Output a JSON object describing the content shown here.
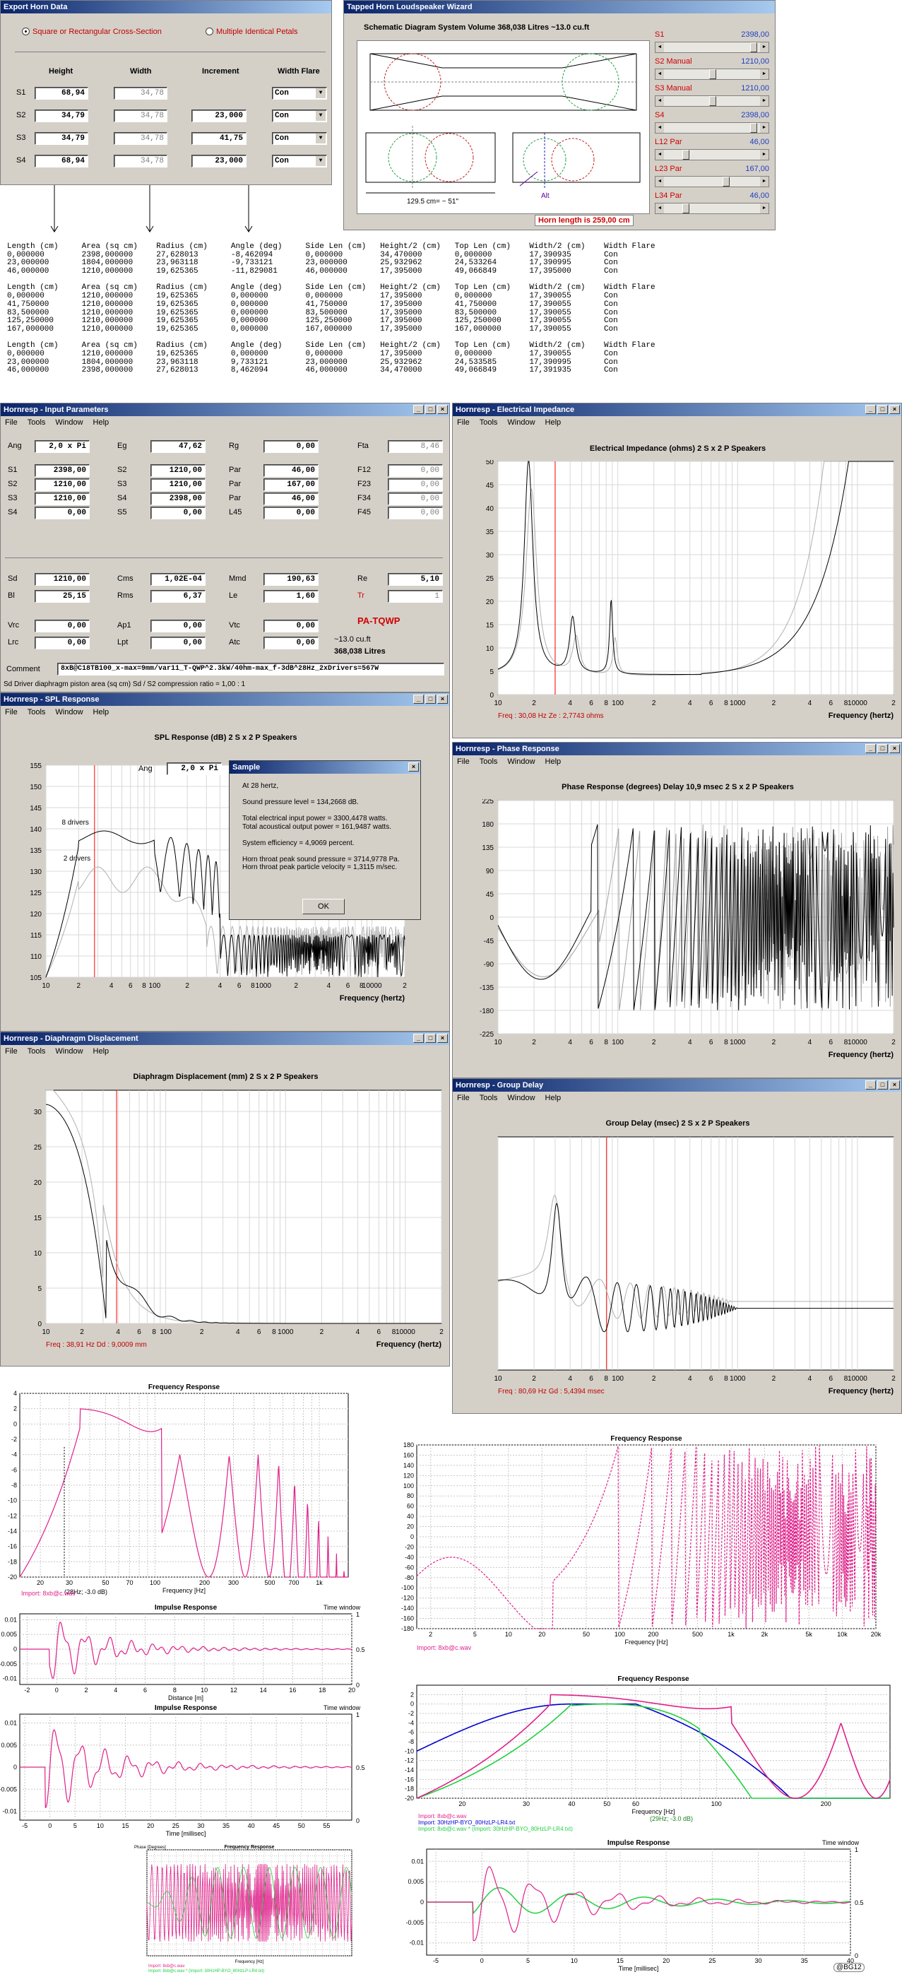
{
  "export_horn": {
    "title": "Export Horn Data",
    "radio_square": "Square or Rectangular Cross-Section",
    "radio_multiple": "Multiple Identical Petals",
    "col_height": "Height",
    "col_width": "Width",
    "col_increment": "Increment",
    "col_flare": "Width Flare",
    "rows": [
      {
        "label": "S1",
        "height": "68,94",
        "width": "34,78",
        "increment": "",
        "flare": "Con"
      },
      {
        "label": "S2",
        "height": "34,79",
        "width": "34,78",
        "increment": "23,000",
        "flare": "Con"
      },
      {
        "label": "S3",
        "height": "34,79",
        "width": "34,78",
        "increment": "41,75",
        "flare": "Con"
      },
      {
        "label": "S4",
        "height": "68,94",
        "width": "34,78",
        "increment": "23,000",
        "flare": "Con"
      }
    ]
  },
  "wizard": {
    "title": "Tapped Horn Loudspeaker Wizard",
    "heading": "Schematic Diagram   System Volume 368,038 Litres ~13.0 cu.ft",
    "dim_label": "129.5 cm= ~ 51\"",
    "alt_label": "Alt",
    "horn_length": "Horn length is 259,00 cm",
    "sliders": [
      {
        "label": "S1",
        "value": "2398,00",
        "pos": 0.95
      },
      {
        "label": "S2 Manual",
        "value": "1210,00",
        "pos": 0.5
      },
      {
        "label": "S3 Manual",
        "value": "1210,00",
        "pos": 0.5
      },
      {
        "label": "S4",
        "value": "2398,00",
        "pos": 0.95
      },
      {
        "label": "L12 Par",
        "value": "46,00",
        "pos": 0.2
      },
      {
        "label": "L23 Par",
        "value": "167,00",
        "pos": 0.65
      },
      {
        "label": "L34 Par",
        "value": "46,00",
        "pos": 0.2
      }
    ]
  },
  "export_table": [
    "Length (cm)     Area (sq cm)    Radius (cm)     Angle (deg)     Side Len (cm)   Height/2 (cm)   Top Len (cm)    Width/2 (cm)    Width Flare",
    "0,000000        2398,000000     27,628013       -8,462094       0,000000        34,470000       0,000000        17,390935       Con",
    "23,000000       1804,000000     23,963118       -9,733121       23,000000       25,932962       24,533264       17,390995       Con",
    "46,000000       1210,000000     19,625365       -11,829081      46,000000       17,395000       49,066849       17,395000       Con",
    "",
    "Length (cm)     Area (sq cm)    Radius (cm)     Angle (deg)     Side Len (cm)   Height/2 (cm)   Top Len (cm)    Width/2 (cm)    Width Flare",
    "0,000000        1210,000000     19,625365       0,000000        0,000000        17,395000       0,000000        17,390055       Con",
    "41,750000       1210,000000     19,625365       0,000000        41,750000       17,395000       41,750000       17,390055       Con",
    "83,500000       1210,000000     19,625365       0,000000        83,500000       17,395000       83,500000       17,390055       Con",
    "125,250000      1210,000000     19,625365       0,000000        125,250000      17,395000       125,250000      17,390055       Con",
    "167,000000      1210,000000     19,625365       0,000000        167,000000      17,395000       167,000000      17,390055       Con",
    "",
    "Length (cm)     Area (sq cm)    Radius (cm)     Angle (deg)     Side Len (cm)   Height/2 (cm)   Top Len (cm)    Width/2 (cm)    Width Flare",
    "0,000000        1210,000000     19,625365       0,000000        0,000000        17,395000       0,000000        17,390055       Con",
    "23,000000       1804,000000     23,963118       9,733121        23,000000       25,932962       24,533585       17,390995       Con",
    "46,000000       2398,000000     27,628013       8,462094        46,000000       34,470000       49,066849       17,391935       Con"
  ],
  "input": {
    "title": "Hornresp - Input Parameters",
    "menu": [
      "File",
      "Tools",
      "Window",
      "Help"
    ],
    "rows": [
      [
        [
          "Ang",
          "2,0 x Pi"
        ],
        [
          "Eg",
          "47,62"
        ],
        [
          "Rg",
          "0,00"
        ],
        [
          "Fta",
          "8,46"
        ]
      ],
      [
        [
          "S1",
          "2398,00"
        ],
        [
          "S2",
          "1210,00"
        ],
        [
          "Par",
          "46,00"
        ],
        [
          "F12",
          "0,00"
        ]
      ],
      [
        [
          "S2",
          "1210,00"
        ],
        [
          "S3",
          "1210,00"
        ],
        [
          "Par",
          "167,00"
        ],
        [
          "F23",
          "0,00"
        ]
      ],
      [
        [
          "S3",
          "1210,00"
        ],
        [
          "S4",
          "2398,00"
        ],
        [
          "Par",
          "46,00"
        ],
        [
          "F34",
          "0,00"
        ]
      ],
      [
        [
          "S4",
          "0,00"
        ],
        [
          "S5",
          "0,00"
        ],
        [
          "L45",
          "0,00"
        ],
        [
          "F45",
          "0,00"
        ]
      ]
    ],
    "rows2": [
      [
        [
          "Sd",
          "1210,00"
        ],
        [
          "Cms",
          "1,02E-04"
        ],
        [
          "Mmd",
          "190,63"
        ],
        [
          "Re",
          "5,10"
        ]
      ],
      [
        [
          "Bl",
          "25,15"
        ],
        [
          "Rms",
          "6,37"
        ],
        [
          "Le",
          "1,60"
        ],
        [
          "Tr",
          "1"
        ]
      ]
    ],
    "rows3": [
      [
        [
          "Vrc",
          "0,00"
        ],
        [
          "Ap1",
          "0,00"
        ],
        [
          "Vtc",
          "0,00"
        ]
      ],
      [
        [
          "Lrc",
          "0,00"
        ],
        [
          "Lpt",
          "0,00"
        ],
        [
          "Atc",
          "0,00"
        ]
      ]
    ],
    "mode": "PA-TQWP",
    "volume1": "~13.0 cu.ft",
    "volume2": "368,038 Litres",
    "comment_label": "Comment",
    "comment": "8xB@C18TB100_x-max=9mm/var11_T-QWP^2.3kW/40hm-max_f-3dB^28Hz_2xDrivers=567W",
    "status": "Sd  Driver diaphragm piston area (sq cm)   Sd / S2 compression ratio = 1,00 : 1"
  },
  "impedance": {
    "title": "Hornresp - Electrical Impedance",
    "menu": [
      "File",
      "Tools",
      "Window",
      "Help"
    ],
    "heading": "Electrical Impedance (ohms)   2 S x 2 P Speakers",
    "yticks": [
      "50",
      "45",
      "40",
      "35",
      "30",
      "25",
      "20",
      "15",
      "10",
      "5",
      "0"
    ],
    "xticks": [
      "10",
      "2",
      "4",
      "6",
      "8",
      "100",
      "2",
      "4",
      "6",
      "8",
      "1000",
      "2",
      "4",
      "6",
      "8",
      "10000",
      "2"
    ],
    "xunit": "Frequency (hertz)",
    "status": "Freq : 30,08 Hz     Ze : 2,7743 ohms"
  },
  "spl": {
    "title": "Hornresp - SPL Response",
    "menu": [
      "File",
      "Tools",
      "Window",
      "Help"
    ],
    "heading": "SPL Response (dB)   2 S x 2 P Speakers",
    "yticks": [
      "155",
      "150",
      "145",
      "140",
      "135",
      "130",
      "125",
      "120",
      "115",
      "110",
      "105"
    ],
    "xticks": [
      "10",
      "2",
      "4",
      "6",
      "8",
      "100",
      "2",
      "4",
      "6",
      "8",
      "1000",
      "2",
      "4",
      "6",
      "8",
      "10000",
      "2"
    ],
    "xunit": "Frequency (hertz)",
    "label_8": "8 drivers",
    "label_2": "2 drivers",
    "ang_label": "Ang",
    "ang_value": "2,0 x Pi"
  },
  "sample": {
    "title": "Sample",
    "lines": [
      "At 28 hertz,",
      "",
      "Sound pressure level = 134,2668 dB.",
      "",
      "Total electrical input power = 3300,4478 watts.",
      "Total acoustical output power = 161,9487 watts.",
      "",
      "System efficiency = 4,9069 percent.",
      "",
      "Horn throat peak sound pressure = 3714,9778 Pa.",
      "Horn throat peak particle velocity = 1,3115 m/sec."
    ],
    "ok": "OK"
  },
  "phase": {
    "title": "Hornresp - Phase Response",
    "menu": [
      "File",
      "Tools",
      "Window",
      "Help"
    ],
    "heading": "Phase Response (degrees)   Delay 10,9 msec   2 S x 2 P Speakers",
    "yticks": [
      "225",
      "180",
      "135",
      "90",
      "45",
      "0",
      "-45",
      "-90",
      "-135",
      "-180",
      "-225"
    ],
    "xticks": [
      "10",
      "2",
      "4",
      "6",
      "8",
      "100",
      "2",
      "4",
      "6",
      "8",
      "1000",
      "2",
      "4",
      "6",
      "8",
      "10000",
      "2"
    ],
    "xunit": "Frequency (hertz)"
  },
  "displacement": {
    "title": "Hornresp - Diaphragm Displacement",
    "menu": [
      "File",
      "Tools",
      "Window",
      "Help"
    ],
    "heading": "Diaphragm Displacement (mm)   2 S x 2 P Speakers",
    "yticks": [
      "30",
      "25",
      "20",
      "15",
      "10",
      "5",
      "0"
    ],
    "xticks": [
      "10",
      "2",
      "4",
      "6",
      "8",
      "100",
      "2",
      "4",
      "6",
      "8",
      "1000",
      "2",
      "4",
      "6",
      "8",
      "10000",
      "2"
    ],
    "xunit": "Frequency (hertz)",
    "status": "Freq : 38,91 Hz     Dd : 9,0009 mm"
  },
  "group": {
    "title": "Hornresp - Group Delay",
    "menu": [
      "File",
      "Tools",
      "Window",
      "Help"
    ],
    "heading": "Group Delay (msec)   2 S x 2 P Speakers",
    "xticks": [
      "10",
      "2",
      "4",
      "6",
      "8",
      "100",
      "2",
      "4",
      "6",
      "8",
      "1000",
      "2",
      "4",
      "6",
      "8",
      "10000",
      "2"
    ],
    "xunit": "Frequency (hertz)",
    "status": "Freq : 80,69 Hz     Gd : 5,4394 msec"
  },
  "fr1": {
    "ylab": "Amplitude [dB]",
    "title": "Frequency Response",
    "yticks": [
      "4",
      "2",
      "0",
      "-2",
      "-4",
      "-6",
      "-8",
      "-10",
      "-12",
      "-14",
      "-16",
      "-18",
      "-20"
    ],
    "xticks": [
      "20",
      "30",
      "50",
      "70",
      "100",
      "200",
      "300",
      "500",
      "700",
      "1k"
    ],
    "xunit": "Frequency [Hz]",
    "marker": "(28Hz; -3.0 dB)",
    "legend": "Import: 8xb@c.wav"
  },
  "ph1": {
    "ylab": "Phase [Degrees]",
    "title": "Frequency Response",
    "yticks": [
      "180",
      "160",
      "140",
      "120",
      "100",
      "80",
      "60",
      "40",
      "20",
      "0",
      "-20",
      "-40",
      "-60",
      "-80",
      "-100",
      "-120",
      "-140",
      "-160",
      "-180"
    ],
    "xticks": [
      "2",
      "5",
      "10",
      "20",
      "50",
      "100",
      "200",
      "500",
      "1k",
      "2k",
      "5k",
      "10k",
      "20k"
    ],
    "xunit": "Frequency [Hz]",
    "legend": "Import: 8xb@c.wav"
  },
  "ir1": {
    "ylab": "Value",
    "title": "Impulse Response",
    "rlab": "Time window",
    "yticks": [
      "0.01",
      "0.005",
      "0",
      "-0.005",
      "-0.01"
    ],
    "rticks": [
      "1",
      "0.5",
      "0"
    ],
    "xticks": [
      "-2",
      "0",
      "2",
      "4",
      "6",
      "8",
      "10",
      "12",
      "14",
      "16",
      "18",
      "20"
    ],
    "xunit": "Distance [m]"
  },
  "ir2": {
    "ylab": "Value",
    "title": "Impulse Response",
    "rlab": "Time window",
    "yticks": [
      "0.01",
      "0.005",
      "0",
      "-0.005",
      "-0.01"
    ],
    "rticks": [
      "1",
      "0.5",
      "0"
    ],
    "xticks": [
      "-5",
      "0",
      "5",
      "10",
      "15",
      "20",
      "25",
      "30",
      "35",
      "40",
      "45",
      "50",
      "55"
    ],
    "xunit": "Time [millisec]"
  },
  "fr2": {
    "ylab": "Amplitude [dB]",
    "title": "Frequency Response",
    "yticks": [
      "2",
      "0",
      "-2",
      "-4",
      "-6",
      "-8",
      "-10",
      "-12",
      "-14",
      "-16",
      "-18",
      "-20"
    ],
    "xticks": [
      "20",
      "30",
      "40",
      "50",
      "60",
      "100",
      "200"
    ],
    "xunit": "Frequency [Hz]",
    "legend": [
      "Import: 8xb@c.wav",
      "Import: 30HzHP-BYO_80HzLP-LR4.txt",
      "Import: 8xb@c.wav * (Import: 30HzHP-BYO_80HzLP-LR4.txt)"
    ],
    "marker": "(29Hz; -3.0 dB)"
  },
  "thumb": {
    "ylab": "Phase [Degrees]",
    "title": "Frequency Response",
    "xunit": "Frequency [Hz]",
    "legend": [
      "Import: 8xb@c.wav",
      "Import: 8xb@c.wav * (Import: 30HzHP-BYO_80HzLP-LR4.txt)"
    ]
  },
  "ir3": {
    "title": "Impulse Response",
    "rlab": "Time window",
    "yticks": [
      "0.01",
      "0.005",
      "0",
      "-0.005",
      "-0.01"
    ],
    "rticks": [
      "1",
      "0.5",
      "0"
    ],
    "xticks": [
      "-5",
      "0",
      "5",
      "10",
      "15",
      "20",
      "25",
      "30",
      "35",
      "40"
    ],
    "xunit": "Time [millisec]"
  },
  "credit": "@BG12",
  "colors": {
    "titlebar": "#0a246a",
    "curve": "#000000",
    "marker": "#ff0000",
    "pink": "#e0208a",
    "blue": "#0000d0",
    "green": "#20d040"
  }
}
